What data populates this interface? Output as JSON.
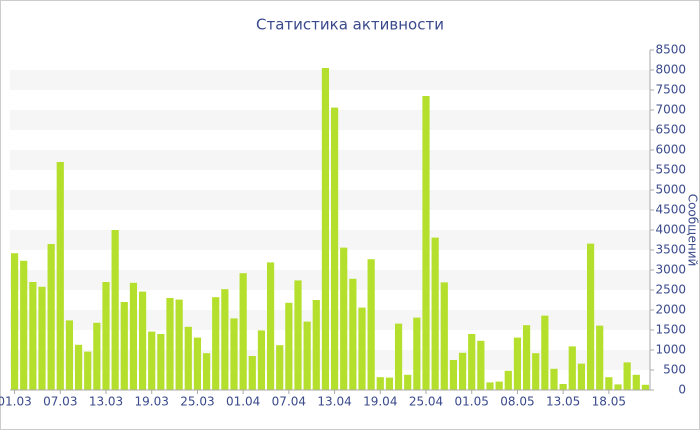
{
  "chart_data": {
    "type": "bar",
    "title": "Статистика активности",
    "y_label": "Сообщений",
    "categories": [
      "01.03",
      null,
      null,
      null,
      null,
      "07.03",
      null,
      null,
      null,
      null,
      "13.03",
      null,
      null,
      null,
      null,
      "19.03",
      null,
      null,
      null,
      null,
      "25.03",
      null,
      null,
      null,
      null,
      "01.04",
      null,
      null,
      null,
      null,
      "07.04",
      null,
      null,
      null,
      null,
      "13.04",
      null,
      null,
      null,
      null,
      "19.04",
      null,
      null,
      null,
      null,
      "25.04",
      null,
      null,
      null,
      null,
      "01.05",
      null,
      null,
      null,
      null,
      "08.05",
      null,
      null,
      null,
      null,
      "13.05",
      null,
      null,
      null,
      null,
      "18.05",
      null,
      null,
      null,
      null
    ],
    "values": [
      3420,
      3230,
      2700,
      2580,
      3650,
      5700,
      1740,
      1130,
      960,
      1680,
      2700,
      4000,
      2200,
      2680,
      2460,
      1460,
      1400,
      2300,
      2260,
      1580,
      1310,
      920,
      2320,
      2520,
      1790,
      2920,
      850,
      1490,
      3190,
      1120,
      2180,
      2740,
      1710,
      2250,
      8050,
      7060,
      3560,
      2780,
      2060,
      3270,
      320,
      310,
      1660,
      380,
      1810,
      7350,
      3810,
      2690,
      750,
      930,
      1400,
      1230,
      190,
      210,
      480,
      1310,
      1620,
      920,
      1860,
      530,
      150,
      1090,
      660,
      3660,
      1610,
      320,
      140,
      690,
      380,
      130
    ],
    "color": "#b4df2c",
    "ylim": [
      0,
      8500
    ],
    "yticks": [
      0,
      500,
      1000,
      1500,
      2000,
      2500,
      3000,
      3500,
      4000,
      4500,
      5000,
      5500,
      6000,
      6500,
      7000,
      7500,
      8000,
      8500
    ],
    "grid": true
  }
}
